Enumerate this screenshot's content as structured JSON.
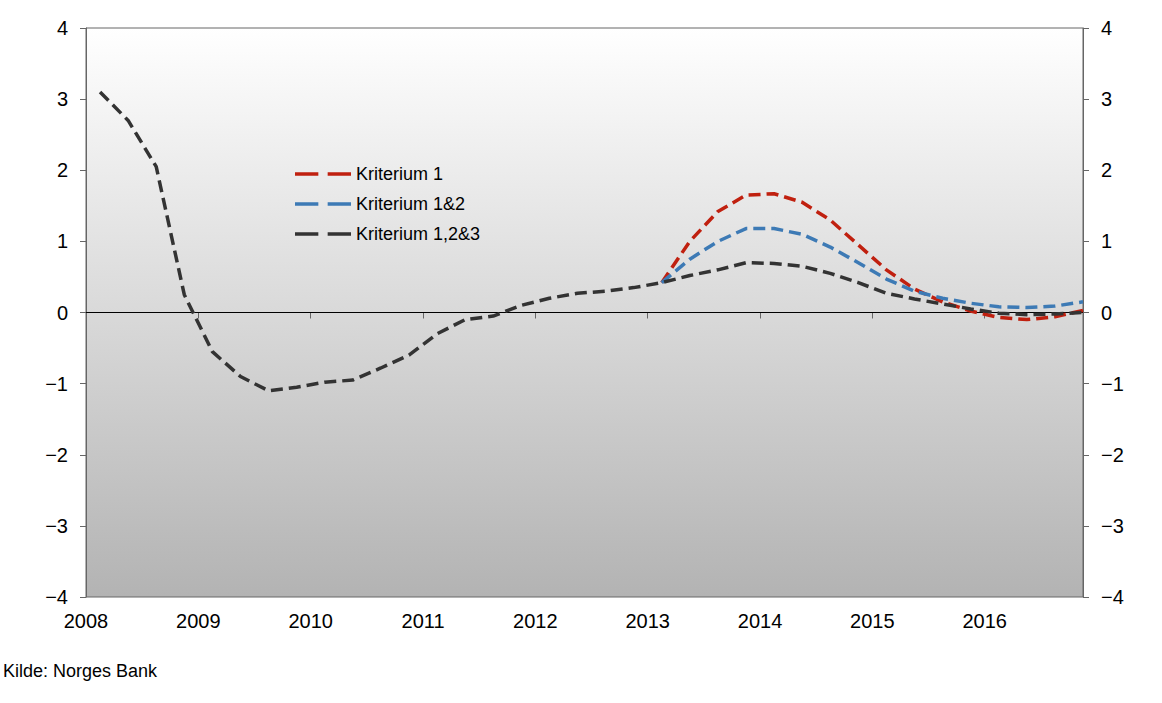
{
  "chart_data": {
    "type": "line",
    "source": "Kilde: Norges Bank",
    "x": [
      2008.125,
      2008.375,
      2008.625,
      2008.875,
      2009.125,
      2009.375,
      2009.625,
      2009.875,
      2010.125,
      2010.375,
      2010.625,
      2010.875,
      2011.125,
      2011.375,
      2011.625,
      2011.875,
      2012.125,
      2012.375,
      2012.625,
      2012.875,
      2013.125,
      2013.375,
      2013.625,
      2013.875,
      2014.125,
      2014.375,
      2014.625,
      2014.875,
      2015.125,
      2015.375,
      2015.625,
      2015.875,
      2016.125,
      2016.375,
      2016.625,
      2016.875
    ],
    "series": [
      {
        "name": "Kriterium 1",
        "color": "#c0200f",
        "line_style": "dashed",
        "values": [
          null,
          null,
          null,
          null,
          null,
          null,
          null,
          null,
          null,
          null,
          null,
          null,
          null,
          null,
          null,
          null,
          null,
          null,
          null,
          null,
          0.42,
          1.0,
          1.42,
          1.65,
          1.67,
          1.55,
          1.3,
          0.95,
          0.6,
          0.33,
          0.15,
          0.02,
          -0.07,
          -0.1,
          -0.06,
          0.03
        ]
      },
      {
        "name": "Kriterium 1&2",
        "color": "#3d7ab5",
        "line_style": "dashed",
        "values": [
          null,
          null,
          null,
          null,
          null,
          null,
          null,
          null,
          null,
          null,
          null,
          null,
          null,
          null,
          null,
          null,
          null,
          null,
          null,
          null,
          0.42,
          0.75,
          1.0,
          1.18,
          1.18,
          1.1,
          0.92,
          0.7,
          0.47,
          0.3,
          0.2,
          0.13,
          0.08,
          0.07,
          0.09,
          0.15
        ]
      },
      {
        "name": "Kriterium 1,2&3",
        "color": "#333333",
        "line_style": "dashed",
        "values": [
          3.1,
          2.7,
          2.05,
          0.25,
          -0.55,
          -0.9,
          -1.1,
          -1.05,
          -0.98,
          -0.95,
          -0.78,
          -0.6,
          -0.3,
          -0.1,
          -0.05,
          0.1,
          0.2,
          0.27,
          0.3,
          0.35,
          0.42,
          0.52,
          0.6,
          0.7,
          0.69,
          0.65,
          0.55,
          0.42,
          0.27,
          0.19,
          0.12,
          0.05,
          -0.01,
          -0.03,
          -0.02,
          0.0
        ]
      }
    ],
    "xlim": [
      2008,
      2016.875
    ],
    "xticks": [
      2008,
      2009,
      2010,
      2011,
      2012,
      2013,
      2014,
      2015,
      2016
    ],
    "ylim": [
      -4,
      4
    ],
    "yticks": [
      {
        "value": -4,
        "label": "−4"
      },
      {
        "value": -3,
        "label": "−3"
      },
      {
        "value": -2,
        "label": "−2"
      },
      {
        "value": -1,
        "label": "−1"
      },
      0,
      1,
      2,
      3,
      4
    ],
    "y2lim": [
      -4,
      4
    ],
    "y2ticks": [
      {
        "value": -4,
        "label": "−4"
      },
      {
        "value": -3,
        "label": "−3"
      },
      {
        "value": -2,
        "label": "−2"
      },
      {
        "value": -1,
        "label": "−1"
      },
      0,
      1,
      2,
      3,
      4
    ],
    "grid": false,
    "legend": "upper left"
  }
}
